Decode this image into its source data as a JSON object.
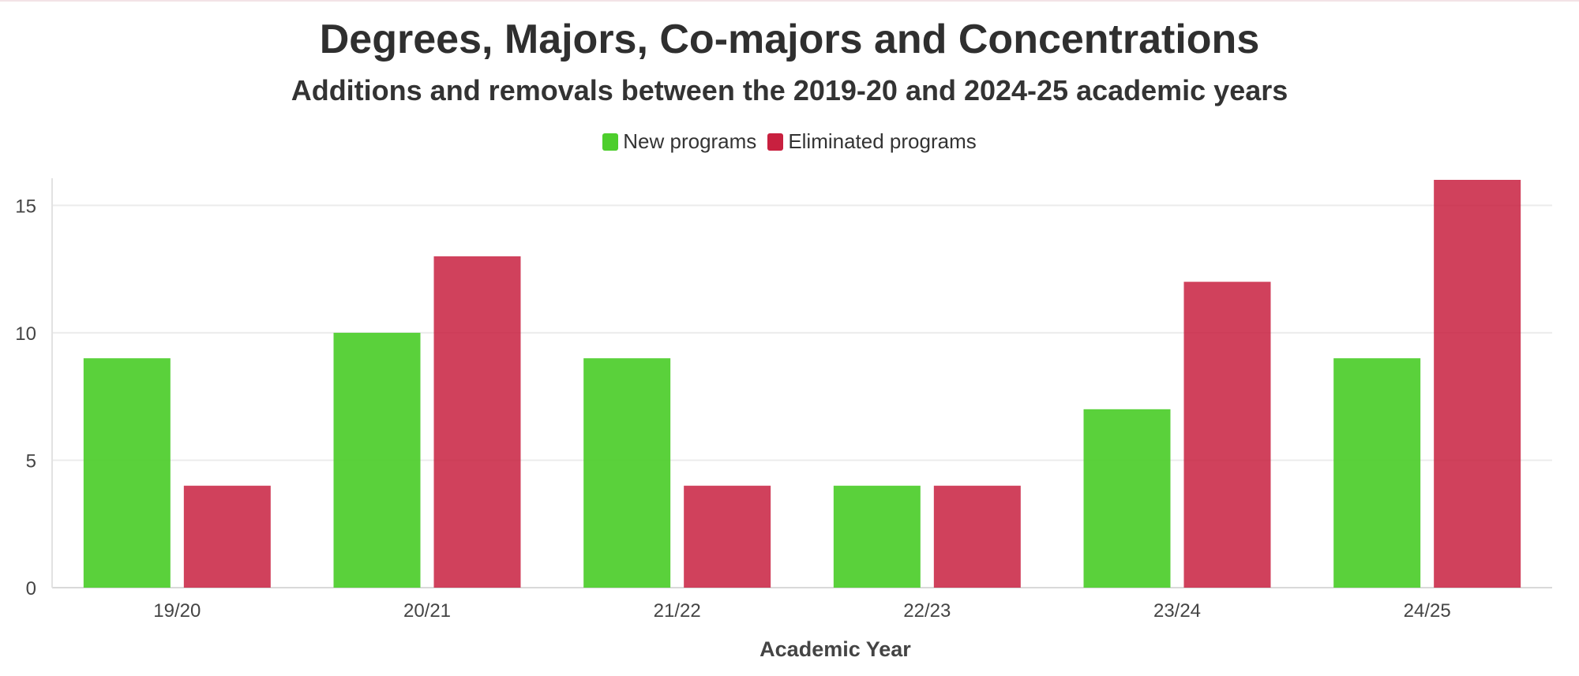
{
  "chart_data": {
    "type": "bar",
    "title": "Degrees, Majors, Co-majors and Concentrations",
    "subtitle": "Additions and removals between the 2019-20 and 2024-25 academic years",
    "xlabel": "Academic Year",
    "ylabel": "",
    "categories": [
      "19/20",
      "20/21",
      "21/22",
      "22/23",
      "23/24",
      "24/25"
    ],
    "series": [
      {
        "name": "New programs",
        "color": "#4dce2c",
        "values": [
          9,
          10,
          9,
          4,
          7,
          9
        ]
      },
      {
        "name": "Eliminated programs",
        "color": "#c8203f",
        "values": [
          4,
          13,
          4,
          4,
          12,
          16
        ]
      }
    ],
    "ylim": [
      0,
      16
    ],
    "yticks": [
      0,
      5,
      10,
      15
    ],
    "grid": true,
    "legend_position": "top-center"
  }
}
